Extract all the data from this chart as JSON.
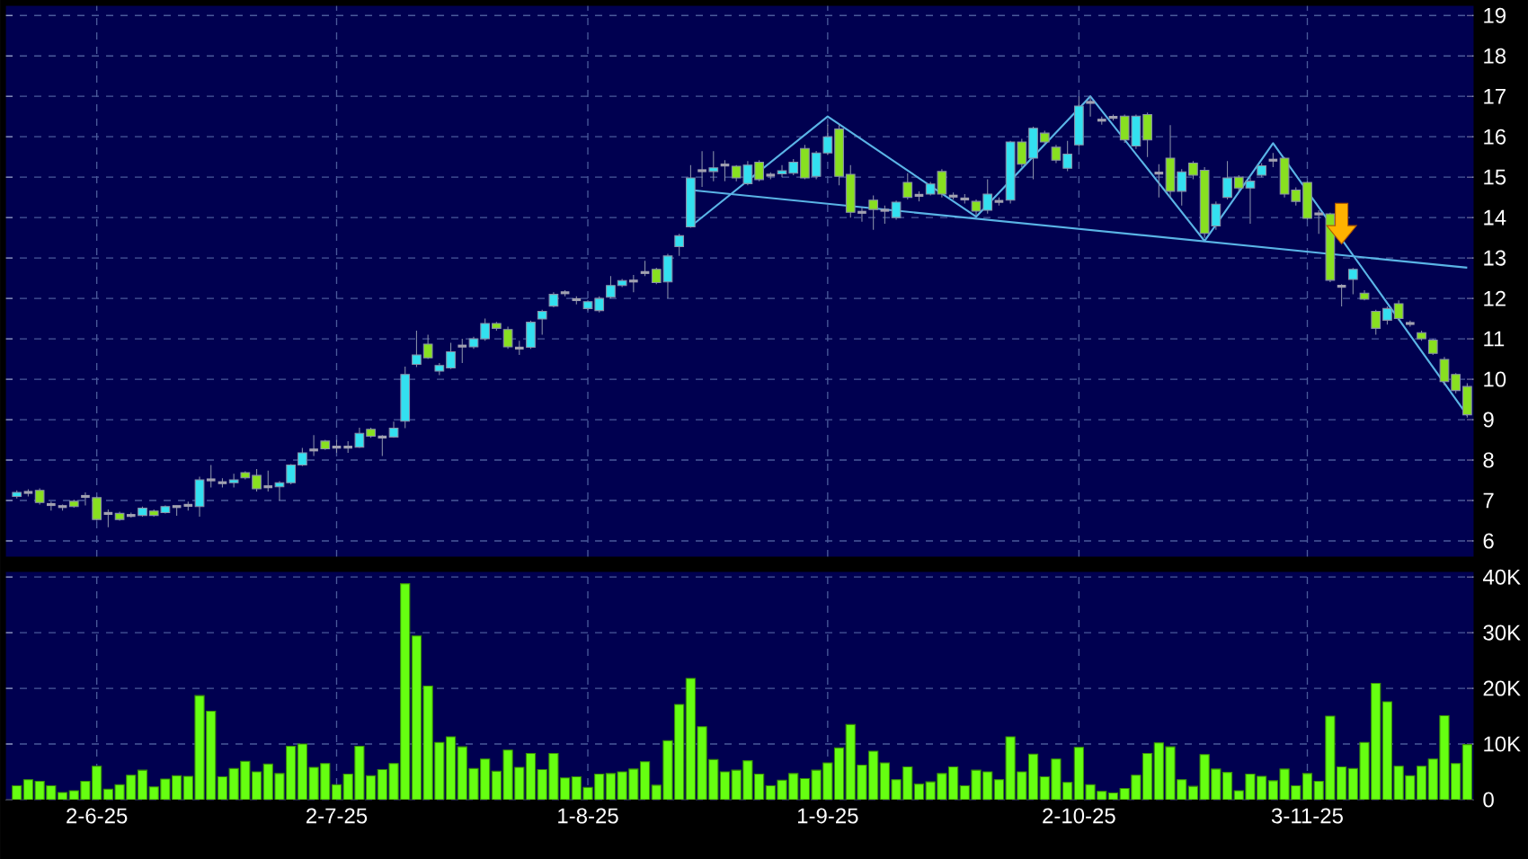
{
  "chart_data": [
    {
      "type": "candlestick",
      "grid": true,
      "tick_labels": "y",
      "ylim": [
        5.6,
        19.25
      ],
      "yticks": [
        6,
        7,
        8,
        9,
        10,
        11,
        12,
        13,
        14,
        15,
        16,
        17,
        18,
        19
      ],
      "categories": [
        null,
        null,
        null,
        null,
        null,
        null,
        null,
        null,
        null,
        null,
        null,
        null,
        null,
        null,
        null,
        null,
        null,
        null,
        null,
        null,
        null,
        null,
        null,
        null,
        null,
        null,
        null,
        null,
        null,
        null,
        null,
        null,
        null,
        null,
        null,
        null,
        null,
        null,
        null,
        null,
        null,
        null,
        null,
        null,
        null,
        null,
        null,
        null,
        null,
        null,
        null,
        null,
        null,
        null,
        null,
        null,
        null,
        null,
        null,
        null,
        null,
        null,
        null,
        null,
        null,
        null,
        null,
        null,
        null,
        null,
        null,
        null,
        null,
        null,
        null,
        null,
        null,
        null,
        null,
        null,
        null,
        null,
        null,
        null,
        null,
        null,
        null,
        null,
        null,
        null,
        null,
        null,
        null,
        null,
        null,
        null,
        null,
        null,
        null,
        null,
        null,
        null,
        null,
        null,
        null,
        null,
        null,
        null,
        null,
        null,
        null,
        null,
        null,
        null,
        null,
        null,
        null,
        null,
        null,
        null,
        null,
        null,
        null,
        null,
        null,
        null,
        null,
        null
      ],
      "ohlc": [
        [
          7.1,
          7.25,
          7.05,
          7.2
        ],
        [
          7.2,
          7.28,
          7.1,
          7.2
        ],
        [
          7.25,
          7.3,
          6.9,
          6.95
        ],
        [
          6.9,
          6.97,
          6.75,
          6.9
        ],
        [
          6.85,
          6.9,
          6.75,
          6.85
        ],
        [
          6.98,
          7.02,
          6.82,
          6.85
        ],
        [
          7.1,
          7.2,
          6.88,
          7.1
        ],
        [
          7.07,
          7.1,
          6.5,
          6.53
        ],
        [
          6.68,
          6.78,
          6.34,
          6.68
        ],
        [
          6.68,
          6.72,
          6.5,
          6.53
        ],
        [
          6.63,
          6.7,
          6.58,
          6.63
        ],
        [
          6.63,
          6.85,
          6.6,
          6.81
        ],
        [
          6.74,
          6.78,
          6.6,
          6.63
        ],
        [
          6.7,
          6.88,
          6.68,
          6.85
        ],
        [
          6.85,
          6.87,
          6.62,
          6.85
        ],
        [
          6.88,
          6.97,
          6.75,
          6.88
        ],
        [
          6.85,
          7.59,
          6.6,
          7.51
        ],
        [
          7.51,
          7.88,
          7.32,
          7.51
        ],
        [
          7.44,
          7.55,
          7.32,
          7.44
        ],
        [
          7.44,
          7.66,
          7.32,
          7.51
        ],
        [
          7.69,
          7.72,
          7.52,
          7.56
        ],
        [
          7.62,
          7.78,
          7.22,
          7.29
        ],
        [
          7.34,
          7.74,
          7.22,
          7.34
        ],
        [
          7.34,
          7.48,
          7.0,
          7.44
        ],
        [
          7.44,
          7.9,
          7.4,
          7.88
        ],
        [
          7.88,
          8.3,
          7.85,
          8.18
        ],
        [
          8.25,
          8.62,
          8.1,
          8.25
        ],
        [
          8.47,
          8.5,
          8.25,
          8.28
        ],
        [
          8.32,
          8.5,
          8.18,
          8.32
        ],
        [
          8.32,
          8.47,
          8.18,
          8.32
        ],
        [
          8.32,
          8.8,
          8.3,
          8.66
        ],
        [
          8.76,
          8.8,
          8.55,
          8.59
        ],
        [
          8.57,
          8.62,
          8.1,
          8.57
        ],
        [
          8.57,
          8.95,
          8.55,
          8.79
        ],
        [
          8.96,
          10.31,
          8.79,
          10.12
        ],
        [
          10.37,
          11.2,
          10.3,
          10.6
        ],
        [
          10.87,
          11.1,
          10.5,
          10.53
        ],
        [
          10.2,
          10.4,
          10.1,
          10.34
        ],
        [
          10.28,
          10.9,
          10.25,
          10.68
        ],
        [
          10.82,
          11.0,
          10.4,
          10.82
        ],
        [
          10.8,
          11.05,
          10.75,
          11.0
        ],
        [
          11.0,
          11.5,
          10.95,
          11.38
        ],
        [
          11.38,
          11.42,
          11.2,
          11.26
        ],
        [
          11.23,
          11.3,
          10.75,
          10.8
        ],
        [
          10.77,
          10.95,
          10.6,
          10.77
        ],
        [
          10.79,
          11.45,
          10.75,
          11.41
        ],
        [
          11.49,
          11.72,
          11.1,
          11.68
        ],
        [
          11.81,
          12.15,
          11.78,
          12.1
        ],
        [
          12.14,
          12.2,
          12.05,
          12.14
        ],
        [
          11.97,
          12.05,
          11.85,
          11.97
        ],
        [
          11.75,
          11.95,
          11.7,
          11.92
        ],
        [
          11.7,
          12.05,
          11.65,
          12.0
        ],
        [
          12.03,
          12.55,
          12.0,
          12.32
        ],
        [
          12.32,
          12.48,
          12.28,
          12.44
        ],
        [
          12.43,
          12.58,
          12.15,
          12.43
        ],
        [
          12.64,
          12.93,
          12.55,
          12.64
        ],
        [
          12.72,
          12.76,
          12.35,
          12.39
        ],
        [
          12.41,
          13.1,
          12.0,
          13.05
        ],
        [
          13.28,
          13.6,
          13.05,
          13.55
        ],
        [
          13.77,
          15.3,
          13.75,
          14.98
        ],
        [
          15.16,
          15.64,
          14.76,
          15.16
        ],
        [
          15.14,
          15.64,
          14.9,
          15.23
        ],
        [
          15.3,
          15.42,
          14.9,
          15.3
        ],
        [
          15.27,
          15.3,
          14.9,
          14.98
        ],
        [
          14.84,
          15.4,
          14.8,
          15.3
        ],
        [
          15.37,
          15.42,
          14.9,
          14.94
        ],
        [
          15.05,
          15.12,
          14.95,
          15.05
        ],
        [
          15.08,
          15.3,
          15.0,
          15.16
        ],
        [
          15.1,
          15.45,
          15.05,
          15.37
        ],
        [
          15.71,
          15.8,
          14.95,
          14.98
        ],
        [
          15.02,
          15.65,
          14.95,
          15.6
        ],
        [
          15.6,
          16.3,
          15.55,
          16.0
        ],
        [
          16.19,
          16.3,
          14.8,
          15.02
        ],
        [
          15.07,
          15.3,
          14.0,
          14.13
        ],
        [
          14.13,
          14.25,
          13.9,
          14.13
        ],
        [
          14.43,
          14.55,
          13.7,
          14.2
        ],
        [
          14.18,
          14.3,
          13.85,
          14.18
        ],
        [
          14.0,
          14.42,
          13.95,
          14.38
        ],
        [
          14.87,
          15.1,
          14.45,
          14.5
        ],
        [
          14.55,
          14.65,
          14.4,
          14.55
        ],
        [
          14.58,
          14.88,
          14.55,
          14.83
        ],
        [
          15.14,
          15.2,
          14.5,
          14.58
        ],
        [
          14.53,
          14.62,
          14.45,
          14.53
        ],
        [
          14.46,
          14.58,
          14.35,
          14.46
        ],
        [
          14.4,
          14.45,
          14.05,
          14.16
        ],
        [
          14.18,
          14.95,
          14.1,
          14.58
        ],
        [
          14.4,
          14.5,
          14.3,
          14.4
        ],
        [
          14.43,
          15.9,
          14.35,
          15.87
        ],
        [
          15.87,
          15.95,
          15.25,
          15.32
        ],
        [
          15.47,
          16.25,
          14.95,
          16.21
        ],
        [
          16.09,
          16.15,
          15.8,
          15.87
        ],
        [
          15.74,
          15.8,
          15.35,
          15.42
        ],
        [
          15.22,
          15.9,
          15.15,
          15.57
        ],
        [
          15.8,
          17.0,
          15.75,
          16.76
        ],
        [
          16.85,
          17.0,
          16.5,
          16.85
        ],
        [
          16.41,
          16.5,
          16.3,
          16.41
        ],
        [
          16.48,
          16.55,
          16.4,
          16.48
        ],
        [
          16.51,
          16.55,
          15.85,
          15.92
        ],
        [
          15.77,
          16.55,
          15.7,
          16.51
        ],
        [
          16.55,
          16.6,
          15.5,
          15.92
        ],
        [
          15.1,
          15.32,
          14.5,
          15.1
        ],
        [
          15.47,
          16.29,
          14.5,
          14.65
        ],
        [
          14.65,
          15.2,
          14.3,
          15.13
        ],
        [
          15.35,
          15.4,
          14.95,
          15.05
        ],
        [
          15.17,
          15.25,
          13.5,
          13.61
        ],
        [
          13.79,
          14.4,
          13.7,
          14.33
        ],
        [
          14.5,
          15.4,
          14.45,
          14.98
        ],
        [
          15.0,
          15.05,
          14.65,
          14.73
        ],
        [
          14.73,
          15.0,
          13.85,
          14.9
        ],
        [
          15.05,
          15.35,
          15.0,
          15.28
        ],
        [
          15.42,
          15.6,
          15.25,
          15.42
        ],
        [
          15.47,
          15.5,
          14.5,
          14.58
        ],
        [
          14.68,
          14.75,
          14.3,
          14.4
        ],
        [
          14.87,
          14.9,
          13.95,
          13.98
        ],
        [
          14.09,
          14.18,
          13.6,
          14.09
        ],
        [
          14.09,
          14.12,
          12.4,
          12.45
        ],
        [
          12.3,
          12.35,
          11.8,
          12.3
        ],
        [
          12.47,
          12.75,
          12.1,
          12.72
        ],
        [
          12.13,
          12.2,
          11.95,
          11.98
        ],
        [
          11.68,
          11.72,
          11.1,
          11.26
        ],
        [
          11.46,
          11.8,
          11.35,
          11.75
        ],
        [
          11.87,
          11.95,
          11.45,
          11.5
        ],
        [
          11.38,
          11.45,
          11.3,
          11.38
        ],
        [
          11.15,
          11.2,
          10.95,
          11.0
        ],
        [
          10.97,
          11.0,
          10.6,
          10.64
        ],
        [
          10.49,
          10.55,
          9.85,
          9.94
        ],
        [
          10.12,
          10.15,
          9.65,
          9.72
        ],
        [
          9.82,
          9.9,
          9.05,
          9.12
        ]
      ],
      "series": [
        {
          "type": "line",
          "color": "#5ab4e6",
          "values": [
            null,
            null,
            null,
            null,
            null,
            null,
            null,
            null,
            null,
            null,
            null,
            null,
            null,
            null,
            null,
            null,
            null,
            null,
            null,
            null,
            null,
            null,
            null,
            null,
            null,
            null,
            null,
            null,
            null,
            null,
            null,
            null,
            null,
            null,
            null,
            null,
            null,
            null,
            null,
            null,
            null,
            null,
            null,
            null,
            null,
            null,
            null,
            null,
            null,
            null,
            null,
            null,
            null,
            null,
            null,
            null,
            null,
            null,
            null,
            14.68,
            null,
            null,
            null,
            null,
            null,
            null,
            null,
            null,
            null,
            null,
            null,
            null,
            null,
            null,
            null,
            null,
            null,
            null,
            null,
            null,
            null,
            null,
            null,
            null,
            null,
            null,
            null,
            null,
            null,
            null,
            null,
            null,
            null,
            null,
            null,
            null,
            null,
            null,
            null,
            null,
            null,
            null,
            null,
            null,
            null,
            null,
            null,
            null,
            null,
            null,
            null,
            null,
            null,
            null,
            null,
            null,
            null,
            null,
            null,
            null,
            null,
            null,
            null,
            null,
            null,
            null,
            null,
            12.76
          ]
        },
        {
          "type": "line",
          "color": "#5ab4e6",
          "values": [
            null,
            null,
            null,
            null,
            null,
            null,
            null,
            null,
            null,
            null,
            null,
            null,
            null,
            null,
            null,
            null,
            null,
            null,
            null,
            null,
            null,
            null,
            null,
            null,
            null,
            null,
            null,
            null,
            null,
            null,
            null,
            null,
            null,
            null,
            null,
            null,
            null,
            null,
            null,
            null,
            null,
            null,
            null,
            null,
            null,
            null,
            null,
            null,
            null,
            null,
            null,
            null,
            null,
            null,
            null,
            null,
            null,
            null,
            null,
            13.78,
            null,
            null,
            null,
            null,
            null,
            null,
            null,
            null,
            null,
            null,
            null,
            16.5,
            null,
            null,
            null,
            null,
            null,
            null,
            null,
            null,
            null,
            null,
            null,
            null,
            14.02,
            null,
            null,
            null,
            null,
            null,
            null,
            null,
            null,
            null,
            17.0,
            null,
            null,
            null,
            null,
            null,
            null,
            null,
            null,
            null,
            13.42,
            null,
            null,
            null,
            null,
            null,
            15.84,
            null,
            null,
            null,
            null,
            null,
            null,
            null,
            null,
            null,
            null,
            null,
            null,
            null,
            null,
            null,
            null,
            9.11
          ]
        }
      ]
    },
    {
      "type": "bar",
      "grid": true,
      "color": "#66ff11",
      "ylim": [
        0,
        41000
      ],
      "yticks": [
        0,
        {
          "value": 10000,
          "label": "10K"
        },
        {
          "value": 20000,
          "label": "20K"
        },
        {
          "value": 30000,
          "label": "30K"
        },
        {
          "value": 40000,
          "label": "40K"
        }
      ],
      "categories": [
        null,
        null,
        null,
        null,
        null,
        null,
        null,
        "2-6-25",
        null,
        null,
        null,
        null,
        null,
        null,
        null,
        null,
        null,
        null,
        null,
        null,
        null,
        null,
        null,
        null,
        null,
        null,
        null,
        null,
        "2-7-25",
        null,
        null,
        null,
        null,
        null,
        null,
        null,
        null,
        null,
        null,
        null,
        null,
        null,
        null,
        null,
        null,
        null,
        null,
        null,
        null,
        null,
        "1-8-25",
        null,
        null,
        null,
        null,
        null,
        null,
        null,
        null,
        null,
        null,
        null,
        null,
        null,
        null,
        null,
        null,
        null,
        null,
        null,
        null,
        "1-9-25",
        null,
        null,
        null,
        null,
        null,
        null,
        null,
        null,
        null,
        null,
        null,
        null,
        null,
        null,
        null,
        null,
        null,
        null,
        null,
        null,
        null,
        "2-10-25",
        null,
        null,
        null,
        null,
        null,
        null,
        null,
        null,
        null,
        null,
        null,
        null,
        null,
        null,
        null,
        null,
        null,
        null,
        null,
        "3-11-25",
        null,
        null,
        null,
        null,
        null,
        null,
        null,
        null,
        null,
        null,
        null,
        null,
        null,
        null
      ],
      "values": [
        2500,
        3600,
        3300,
        2500,
        1300,
        1600,
        3300,
        6000,
        1900,
        2700,
        4400,
        5300,
        2300,
        3700,
        4300,
        4200,
        18700,
        15900,
        4100,
        5600,
        6900,
        5000,
        6400,
        4700,
        9600,
        10000,
        5800,
        6500,
        2700,
        4600,
        9600,
        4300,
        5400,
        6500,
        38800,
        29400,
        20400,
        10300,
        11300,
        9500,
        5600,
        7300,
        5100,
        8900,
        5800,
        8300,
        5400,
        8300,
        3900,
        4100,
        2200,
        4600,
        4700,
        5000,
        5500,
        6800,
        2600,
        10600,
        17100,
        21800,
        13100,
        7200,
        5000,
        5300,
        7000,
        4600,
        2500,
        3500,
        4700,
        3800,
        5300,
        6600,
        9300,
        13500,
        6200,
        8700,
        6600,
        3600,
        5900,
        2800,
        3200,
        4700,
        5900,
        2500,
        5300,
        5000,
        3600,
        11300,
        5000,
        8200,
        4100,
        7300,
        3100,
        9400,
        2700,
        1500,
        1200,
        2000,
        4400,
        8300,
        10200,
        9500,
        3600,
        2400,
        8100,
        5500,
        4900,
        1600,
        4600,
        4200,
        3400,
        5500,
        2500,
        4700,
        3300,
        15000,
        5900,
        5600,
        10300,
        20900,
        17600,
        6000,
        4300,
        6000,
        7300,
        15100,
        6500,
        9900
      ]
    }
  ]
}
